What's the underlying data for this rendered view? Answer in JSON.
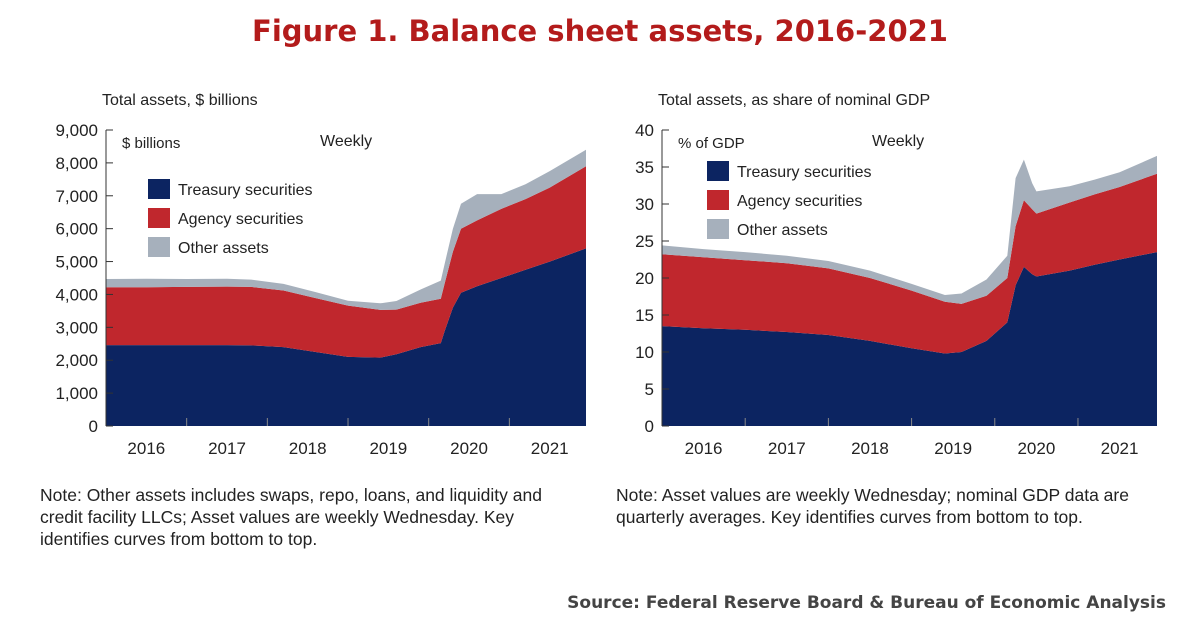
{
  "figure_title": "Figure 1. Balance sheet assets, 2016-2021",
  "source": "Source: Federal Reserve Board & Bureau of Economic Analysis",
  "colors": {
    "treasury": "#0c2461",
    "agency": "#c0272d",
    "other": "#a6b0bc",
    "title": "#b31b1b"
  },
  "left_note": "Note: Other assets includes swaps, repo, loans, and liquidity and credit facility LLCs; Asset values are weekly Wednesday. Key identifies curves from bottom to top.",
  "right_note": "Note:  Asset values are weekly Wednesday; nominal GDP data are quarterly averages. Key identifies curves from bottom to top.",
  "chart_data": [
    {
      "type": "area",
      "title": "Total assets, $ billions",
      "unit_label": "$ billions",
      "frequency_label": "Weekly",
      "ylim": [
        0,
        9000
      ],
      "yticks": [
        "0",
        "1,000",
        "2,000",
        "3,000",
        "4,000",
        "5,000",
        "6,000",
        "7,000",
        "8,000",
        "9,000"
      ],
      "ytick_values": [
        0,
        1000,
        2000,
        3000,
        4000,
        5000,
        6000,
        7000,
        8000,
        9000
      ],
      "xlim": [
        2016.0,
        2021.95
      ],
      "xticks": [
        "2016",
        "2017",
        "2018",
        "2019",
        "2020",
        "2021"
      ],
      "xtick_values": [
        2016.5,
        2017.5,
        2018.5,
        2019.5,
        2020.5,
        2021.5
      ],
      "legend": [
        "Treasury securities",
        "Agency securities",
        "Other assets"
      ],
      "x": [
        2016.0,
        2016.5,
        2017.0,
        2017.5,
        2017.8,
        2018.2,
        2018.6,
        2019.0,
        2019.4,
        2019.6,
        2019.9,
        2020.15,
        2020.2,
        2020.3,
        2020.4,
        2020.6,
        2020.9,
        2021.2,
        2021.5,
        2021.95
      ],
      "series": [
        {
          "name": "Treasury securities",
          "values": [
            2460,
            2460,
            2460,
            2460,
            2450,
            2400,
            2250,
            2100,
            2080,
            2180,
            2400,
            2520,
            2900,
            3600,
            4050,
            4250,
            4500,
            4750,
            5000,
            5400
          ]
        },
        {
          "name": "Agency securities",
          "values": [
            1760,
            1760,
            1770,
            1780,
            1780,
            1720,
            1640,
            1560,
            1450,
            1360,
            1350,
            1350,
            1450,
            1700,
            1950,
            2000,
            2100,
            2150,
            2250,
            2500
          ]
        },
        {
          "name": "Other assets",
          "values": [
            250,
            260,
            240,
            240,
            220,
            200,
            180,
            150,
            200,
            260,
            400,
            550,
            600,
            700,
            760,
            800,
            450,
            450,
            500,
            500
          ]
        }
      ]
    },
    {
      "type": "area",
      "title": "Total assets, as share of nominal GDP",
      "unit_label": "% of GDP",
      "frequency_label": "Weekly",
      "ylim": [
        0,
        40
      ],
      "yticks": [
        "0",
        "5",
        "10",
        "15",
        "20",
        "25",
        "30",
        "35",
        "40"
      ],
      "ytick_values": [
        0,
        5,
        10,
        15,
        20,
        25,
        30,
        35,
        40
      ],
      "xlim": [
        2016.0,
        2021.95
      ],
      "xticks": [
        "2016",
        "2017",
        "2018",
        "2019",
        "2020",
        "2021"
      ],
      "xtick_values": [
        2016.5,
        2017.5,
        2018.5,
        2019.5,
        2020.5,
        2021.5
      ],
      "legend": [
        "Treasury securities",
        "Agency securities",
        "Other assets"
      ],
      "x": [
        2016.0,
        2016.5,
        2017.0,
        2017.5,
        2018.0,
        2018.5,
        2019.0,
        2019.4,
        2019.6,
        2019.9,
        2020.15,
        2020.25,
        2020.35,
        2020.45,
        2020.5,
        2020.9,
        2021.2,
        2021.5,
        2021.95
      ],
      "series": [
        {
          "name": "Treasury securities",
          "values": [
            13.5,
            13.2,
            13.0,
            12.7,
            12.3,
            11.5,
            10.5,
            9.8,
            10.0,
            11.5,
            14.0,
            19.0,
            21.5,
            20.5,
            20.2,
            21.0,
            21.8,
            22.5,
            23.5
          ]
        },
        {
          "name": "Agency securities",
          "values": [
            9.7,
            9.6,
            9.4,
            9.3,
            9.0,
            8.5,
            7.8,
            7.0,
            6.5,
            6.1,
            6.0,
            8.0,
            9.0,
            8.8,
            8.5,
            9.2,
            9.5,
            9.8,
            10.6
          ]
        },
        {
          "name": "Other assets",
          "values": [
            1.2,
            1.1,
            1.1,
            1.0,
            1.0,
            1.0,
            0.9,
            0.9,
            1.4,
            2.2,
            3.0,
            6.5,
            5.5,
            3.5,
            3.0,
            2.2,
            2.0,
            2.0,
            2.4
          ]
        }
      ]
    }
  ]
}
